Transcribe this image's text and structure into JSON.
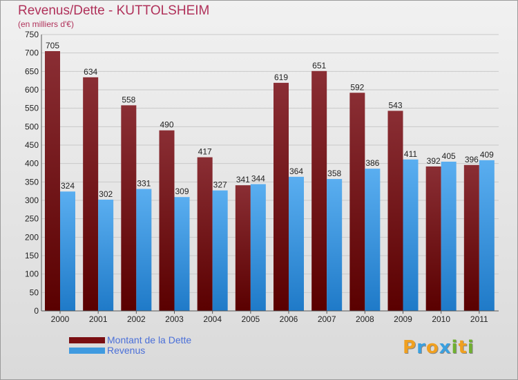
{
  "header": {
    "title": "Revenus/Dette - KUTTOLSHEIM",
    "subtitle": "(en milliers d'€)"
  },
  "legend": {
    "items": [
      {
        "label": "Montant de la Dette",
        "color": "#7a0f13"
      },
      {
        "label": "Revenus",
        "color": "#3f9ae0"
      }
    ]
  },
  "logo": {
    "letters": [
      "P",
      "r",
      "o",
      "x",
      "i",
      "t",
      "i"
    ],
    "colors": [
      "#f0a020",
      "#3aa0e0",
      "#f0a020",
      "#3aa0e0",
      "#70b030",
      "#f0a020",
      "#70b030"
    ]
  },
  "colors": {
    "debt_dark": "#5a0000",
    "debt_light": "#8a2e34",
    "revenue_dark": "#1f7ac8",
    "revenue_light": "#5aaef0"
  },
  "chart_data": {
    "type": "bar",
    "categories": [
      "2000",
      "2001",
      "2002",
      "2003",
      "2004",
      "2005",
      "2006",
      "2007",
      "2008",
      "2009",
      "2010",
      "2011"
    ],
    "series": [
      {
        "name": "Montant de la Dette",
        "values": [
          705,
          634,
          558,
          490,
          417,
          341,
          619,
          651,
          592,
          543,
          392,
          396
        ]
      },
      {
        "name": "Revenus",
        "values": [
          324,
          302,
          331,
          309,
          327,
          344,
          364,
          358,
          386,
          411,
          405,
          409
        ]
      }
    ],
    "ylim": [
      0,
      750
    ],
    "yticks": [
      0,
      50,
      100,
      150,
      200,
      250,
      300,
      350,
      400,
      450,
      500,
      550,
      600,
      650,
      700,
      750
    ],
    "grid": true,
    "legend_position": "bottom-left"
  }
}
